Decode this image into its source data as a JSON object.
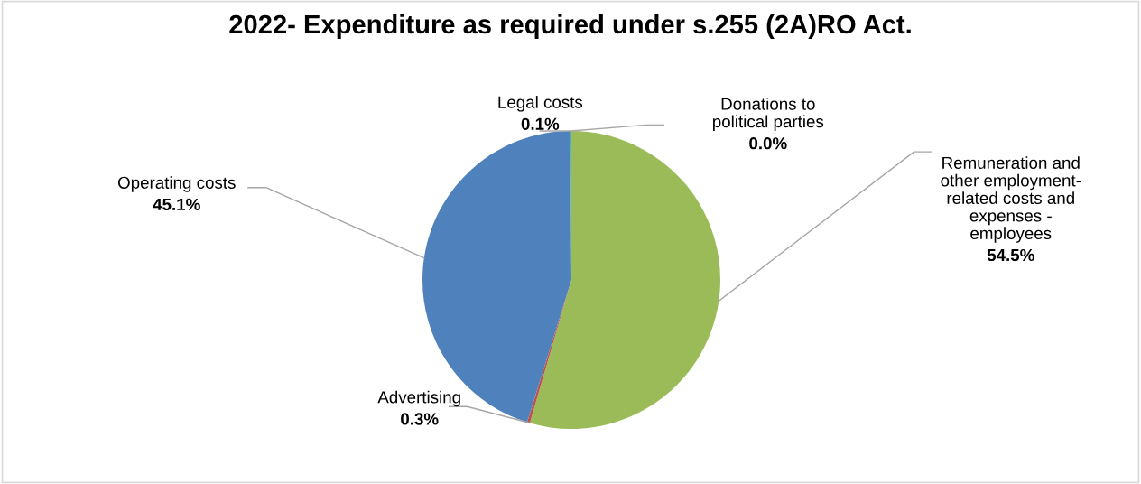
{
  "chart_data": {
    "type": "pie",
    "title": "2022- Expenditure as required under s.255 (2A)RO Act.",
    "categories": [
      "Donations to\npolitical parties",
      "Remuneration and\nother employment-\nrelated costs and\nexpenses -\nemployees",
      "Advertising",
      "Operating costs",
      "Legal costs"
    ],
    "values": [
      0.0,
      54.5,
      0.3,
      45.1,
      0.1
    ],
    "value_labels": [
      "0.0%",
      "54.5%",
      "0.3%",
      "45.1%",
      "0.1%"
    ],
    "colors": [
      "#8064a2",
      "#9bbb59",
      "#c0504d",
      "#4f81bd",
      "#4bacc6"
    ],
    "legend": false
  }
}
